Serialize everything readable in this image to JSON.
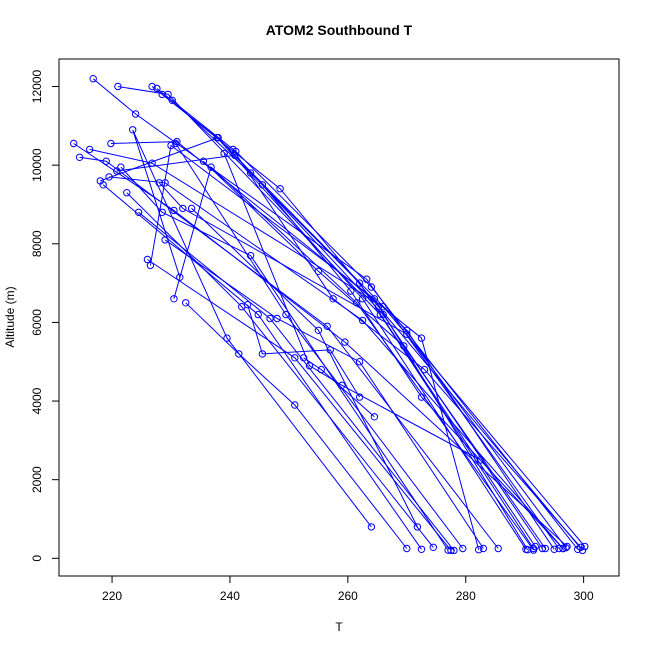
{
  "chart_data": {
    "type": "line",
    "title": "ATOM2 Southbound T",
    "xlabel": "T",
    "ylabel": "Altitude (m)",
    "xlim": [
      211,
      306
    ],
    "ylim": [
      -450,
      12700
    ],
    "xticks": [
      220,
      240,
      260,
      280,
      300
    ],
    "yticks": [
      0,
      2000,
      4000,
      6000,
      8000,
      10000,
      12000
    ],
    "grid": false,
    "color": "#0000ff",
    "series": [
      {
        "values": [
          [
            216.8,
            12200
          ],
          [
            224.0,
            11300
          ],
          [
            263.2,
            7100
          ],
          [
            295.8,
            250
          ]
        ]
      },
      {
        "values": [
          [
            221.0,
            12000
          ],
          [
            229.5,
            11800
          ],
          [
            265.5,
            6200
          ],
          [
            291.5,
            250
          ]
        ]
      },
      {
        "values": [
          [
            226.8,
            12000
          ],
          [
            237.8,
            10700
          ],
          [
            262.5,
            6600
          ],
          [
            290.2,
            230
          ]
        ]
      },
      {
        "values": [
          [
            227.6,
            11950
          ],
          [
            241.0,
            10350
          ],
          [
            264.0,
            6900
          ],
          [
            299.0,
            230
          ]
        ]
      },
      {
        "values": [
          [
            228.5,
            11800
          ],
          [
            248.5,
            9400
          ],
          [
            265.2,
            6400
          ],
          [
            299.8,
            200
          ]
        ]
      },
      {
        "values": [
          [
            230.2,
            11650
          ],
          [
            243.5,
            9800
          ],
          [
            262.0,
            7000
          ],
          [
            291.8,
            300
          ]
        ]
      },
      {
        "values": [
          [
            213.5,
            10550
          ],
          [
            230.5,
            8850
          ],
          [
            259.5,
            5500
          ],
          [
            297.2,
            300
          ]
        ]
      },
      {
        "values": [
          [
            214.5,
            10200
          ],
          [
            219.0,
            10100
          ],
          [
            256.5,
            5900
          ],
          [
            285.5,
            250
          ]
        ]
      },
      {
        "values": [
          [
            216.2,
            10400
          ],
          [
            226.8,
            10050
          ],
          [
            266.0,
            6400
          ],
          [
            300.2,
            300
          ]
        ]
      },
      {
        "values": [
          [
            219.8,
            10550
          ],
          [
            231.0,
            10600
          ],
          [
            272.5,
            5600
          ],
          [
            282.2,
            220
          ]
        ]
      },
      {
        "values": [
          [
            218.0,
            9600
          ],
          [
            238.0,
            10700
          ],
          [
            266.0,
            6200
          ],
          [
            293.0,
            250
          ]
        ]
      },
      {
        "values": [
          [
            219.5,
            9700
          ],
          [
            229.0,
            9550
          ],
          [
            262.5,
            6050
          ],
          [
            296.5,
            250
          ]
        ]
      },
      {
        "values": [
          [
            220.8,
            9850
          ],
          [
            240.8,
            10250
          ],
          [
            270.0,
            5800
          ],
          [
            295.0,
            230
          ]
        ]
      },
      {
        "values": [
          [
            221.5,
            9950
          ],
          [
            228.5,
            8800
          ],
          [
            243.5,
            7700
          ],
          [
            277.0,
            210
          ]
        ]
      },
      {
        "values": [
          [
            226.5,
            7450
          ],
          [
            230.0,
            10500
          ],
          [
            264.5,
            6600
          ],
          [
            290.5,
            220
          ]
        ]
      },
      {
        "values": [
          [
            228.0,
            9550
          ],
          [
            232.0,
            8900
          ],
          [
            270.0,
            5700
          ],
          [
            297.0,
            270
          ]
        ]
      },
      {
        "values": [
          [
            230.5,
            6600
          ],
          [
            236.8,
            9950
          ],
          [
            261.5,
            6500
          ],
          [
            291.5,
            210
          ]
        ]
      },
      {
        "values": [
          [
            230.8,
            10550
          ],
          [
            249.5,
            6200
          ],
          [
            279.5,
            250
          ]
        ]
      },
      {
        "values": [
          [
            233.5,
            8900
          ],
          [
            255.0,
            5800
          ],
          [
            271.8,
            800
          ]
        ]
      },
      {
        "values": [
          [
            231.5,
            7150
          ],
          [
            223.5,
            10900
          ],
          [
            239.5,
            5600
          ],
          [
            264.0,
            800
          ]
        ]
      },
      {
        "values": [
          [
            218.5,
            9500
          ],
          [
            244.8,
            6200
          ],
          [
            272.5,
            230
          ]
        ]
      },
      {
        "values": [
          [
            222.5,
            9300
          ],
          [
            242.0,
            6400
          ],
          [
            274.5,
            280
          ]
        ]
      },
      {
        "values": [
          [
            224.5,
            8800
          ],
          [
            246.8,
            6100
          ],
          [
            278.0,
            200
          ]
        ]
      },
      {
        "values": [
          [
            226.0,
            7600
          ],
          [
            251.0,
            5100
          ],
          [
            277.5,
            200
          ]
        ]
      },
      {
        "values": [
          [
            229.0,
            8100
          ],
          [
            248.0,
            6100
          ],
          [
            262.0,
            5000
          ],
          [
            283.0,
            250
          ]
        ]
      },
      {
        "values": [
          [
            232.5,
            6500
          ],
          [
            241.5,
            5200
          ],
          [
            251.0,
            3900
          ],
          [
            270.0,
            250
          ]
        ]
      },
      {
        "values": [
          [
            235.5,
            10100
          ],
          [
            255.0,
            7300
          ],
          [
            269.5,
            5400
          ],
          [
            293.5,
            250
          ]
        ]
      },
      {
        "values": [
          [
            240.5,
            10400
          ],
          [
            257.5,
            6600
          ],
          [
            273.0,
            4800
          ],
          [
            299.5,
            280
          ]
        ]
      },
      {
        "values": [
          [
            245.5,
            9500
          ],
          [
            260.5,
            6800
          ],
          [
            272.5,
            4100
          ],
          [
            296.5,
            250
          ]
        ]
      },
      {
        "values": [
          [
            239.0,
            10300
          ],
          [
            253.5,
            4900
          ],
          [
            259.0,
            4400
          ],
          [
            282.5,
            2500
          ]
        ]
      },
      {
        "values": [
          [
            243.0,
            6450
          ],
          [
            245.5,
            5200
          ],
          [
            257.0,
            5300
          ],
          [
            262.0,
            4100
          ]
        ]
      },
      {
        "values": [
          [
            252.5,
            5100
          ],
          [
            255.5,
            4800
          ],
          [
            264.5,
            3600
          ]
        ]
      }
    ]
  }
}
